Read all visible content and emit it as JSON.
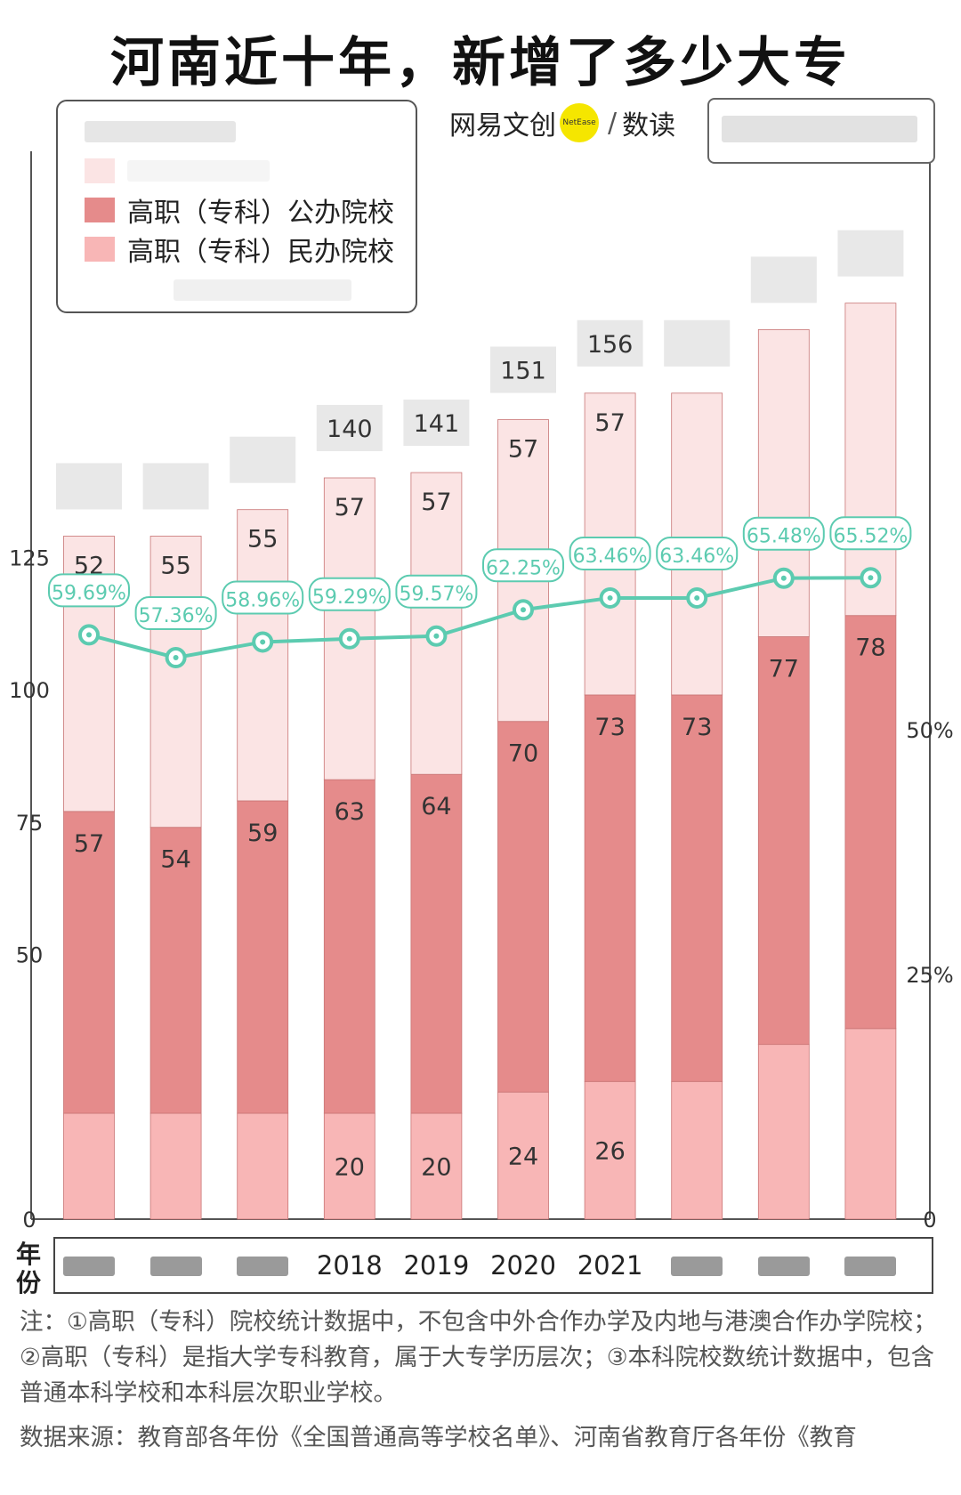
{
  "title": "河南近十年，新增了多少大专",
  "brand": {
    "name": "网易文创",
    "badge": "NetEase",
    "section": "数读"
  },
  "legend": [
    {
      "label": "",
      "color": "#eeeeee",
      "blurred": true
    },
    {
      "label": "",
      "color": "#fbe4e4",
      "blurred": true
    },
    {
      "label": "高职（专科）公办院校",
      "color": "#e58b8b",
      "blurred": false
    },
    {
      "label": "高职（专科）民办院校",
      "color": "#f8b6b6",
      "blurred": false
    }
  ],
  "year_axis_label": "年份",
  "notes": "注：①高职（专科）院校统计数据中，不包含中外合作办学及内地与港澳合作办学院校；②高职（专科）是指大学专科教育，属于大专学历层次；③本科院校数统计数据中，包含普通本科学校和本科层次职业学校。",
  "source": "数据来源：教育部各年份《全国普通高等学校名单》、河南省教育厅各年份《教育",
  "colors": {
    "public": "#e58b8b",
    "private": "#f8b6b6",
    "undergrad": "#fbe4e4",
    "line": "#5ccbb0",
    "line_label_bg": "#ffffff",
    "total_label_bg": "#e8e8e8"
  },
  "chart_data": {
    "type": "bar",
    "stacked": true,
    "categories": [
      "",
      "",
      "",
      "2018",
      "2019",
      "2020",
      "2021",
      "",
      "",
      ""
    ],
    "series": [
      {
        "name": "高职（专科）民办院校",
        "values": [
          20,
          20,
          20,
          20,
          20,
          24,
          26,
          26,
          33,
          36
        ],
        "labels": [
          "",
          "",
          "",
          "20",
          "20",
          "24",
          "26",
          "",
          "",
          ""
        ]
      },
      {
        "name": "高职（专科）公办院校",
        "values": [
          57,
          54,
          59,
          63,
          64,
          70,
          73,
          73,
          77,
          78
        ],
        "labels": [
          "57",
          "54",
          "59",
          "63",
          "64",
          "70",
          "73",
          "73",
          "77",
          "78"
        ]
      },
      {
        "name": "",
        "values": [
          52,
          55,
          55,
          57,
          57,
          57,
          57,
          57,
          58,
          59
        ],
        "labels": [
          "52",
          "55",
          "55",
          "57",
          "57",
          "57",
          "57",
          "",
          "",
          ""
        ]
      }
    ],
    "totals": [
      "",
      "",
      "",
      "140",
      "141",
      "151",
      "156",
      "",
      "",
      ""
    ],
    "line": {
      "name": "",
      "axis": "right",
      "values": [
        59.69,
        57.36,
        58.96,
        59.29,
        59.57,
        62.25,
        63.46,
        63.46,
        65.48,
        65.52
      ],
      "labels": [
        "59.69%",
        "57.36%",
        "58.96%",
        "59.29%",
        "59.57%",
        "62.25%",
        "63.46%",
        "63.46%",
        "65.48%",
        "65.52%"
      ]
    },
    "y_left": {
      "ticks": [
        "0",
        "50",
        "75",
        "100",
        "125"
      ],
      "values": [
        0,
        50,
        75,
        100,
        125
      ],
      "ylim": [
        0,
        175
      ]
    },
    "y_right": {
      "ticks": [
        "0",
        "25%",
        "50%"
      ],
      "values": [
        0,
        25,
        50
      ],
      "ylim": [
        0,
        100
      ]
    },
    "legend_position": "top-left"
  }
}
